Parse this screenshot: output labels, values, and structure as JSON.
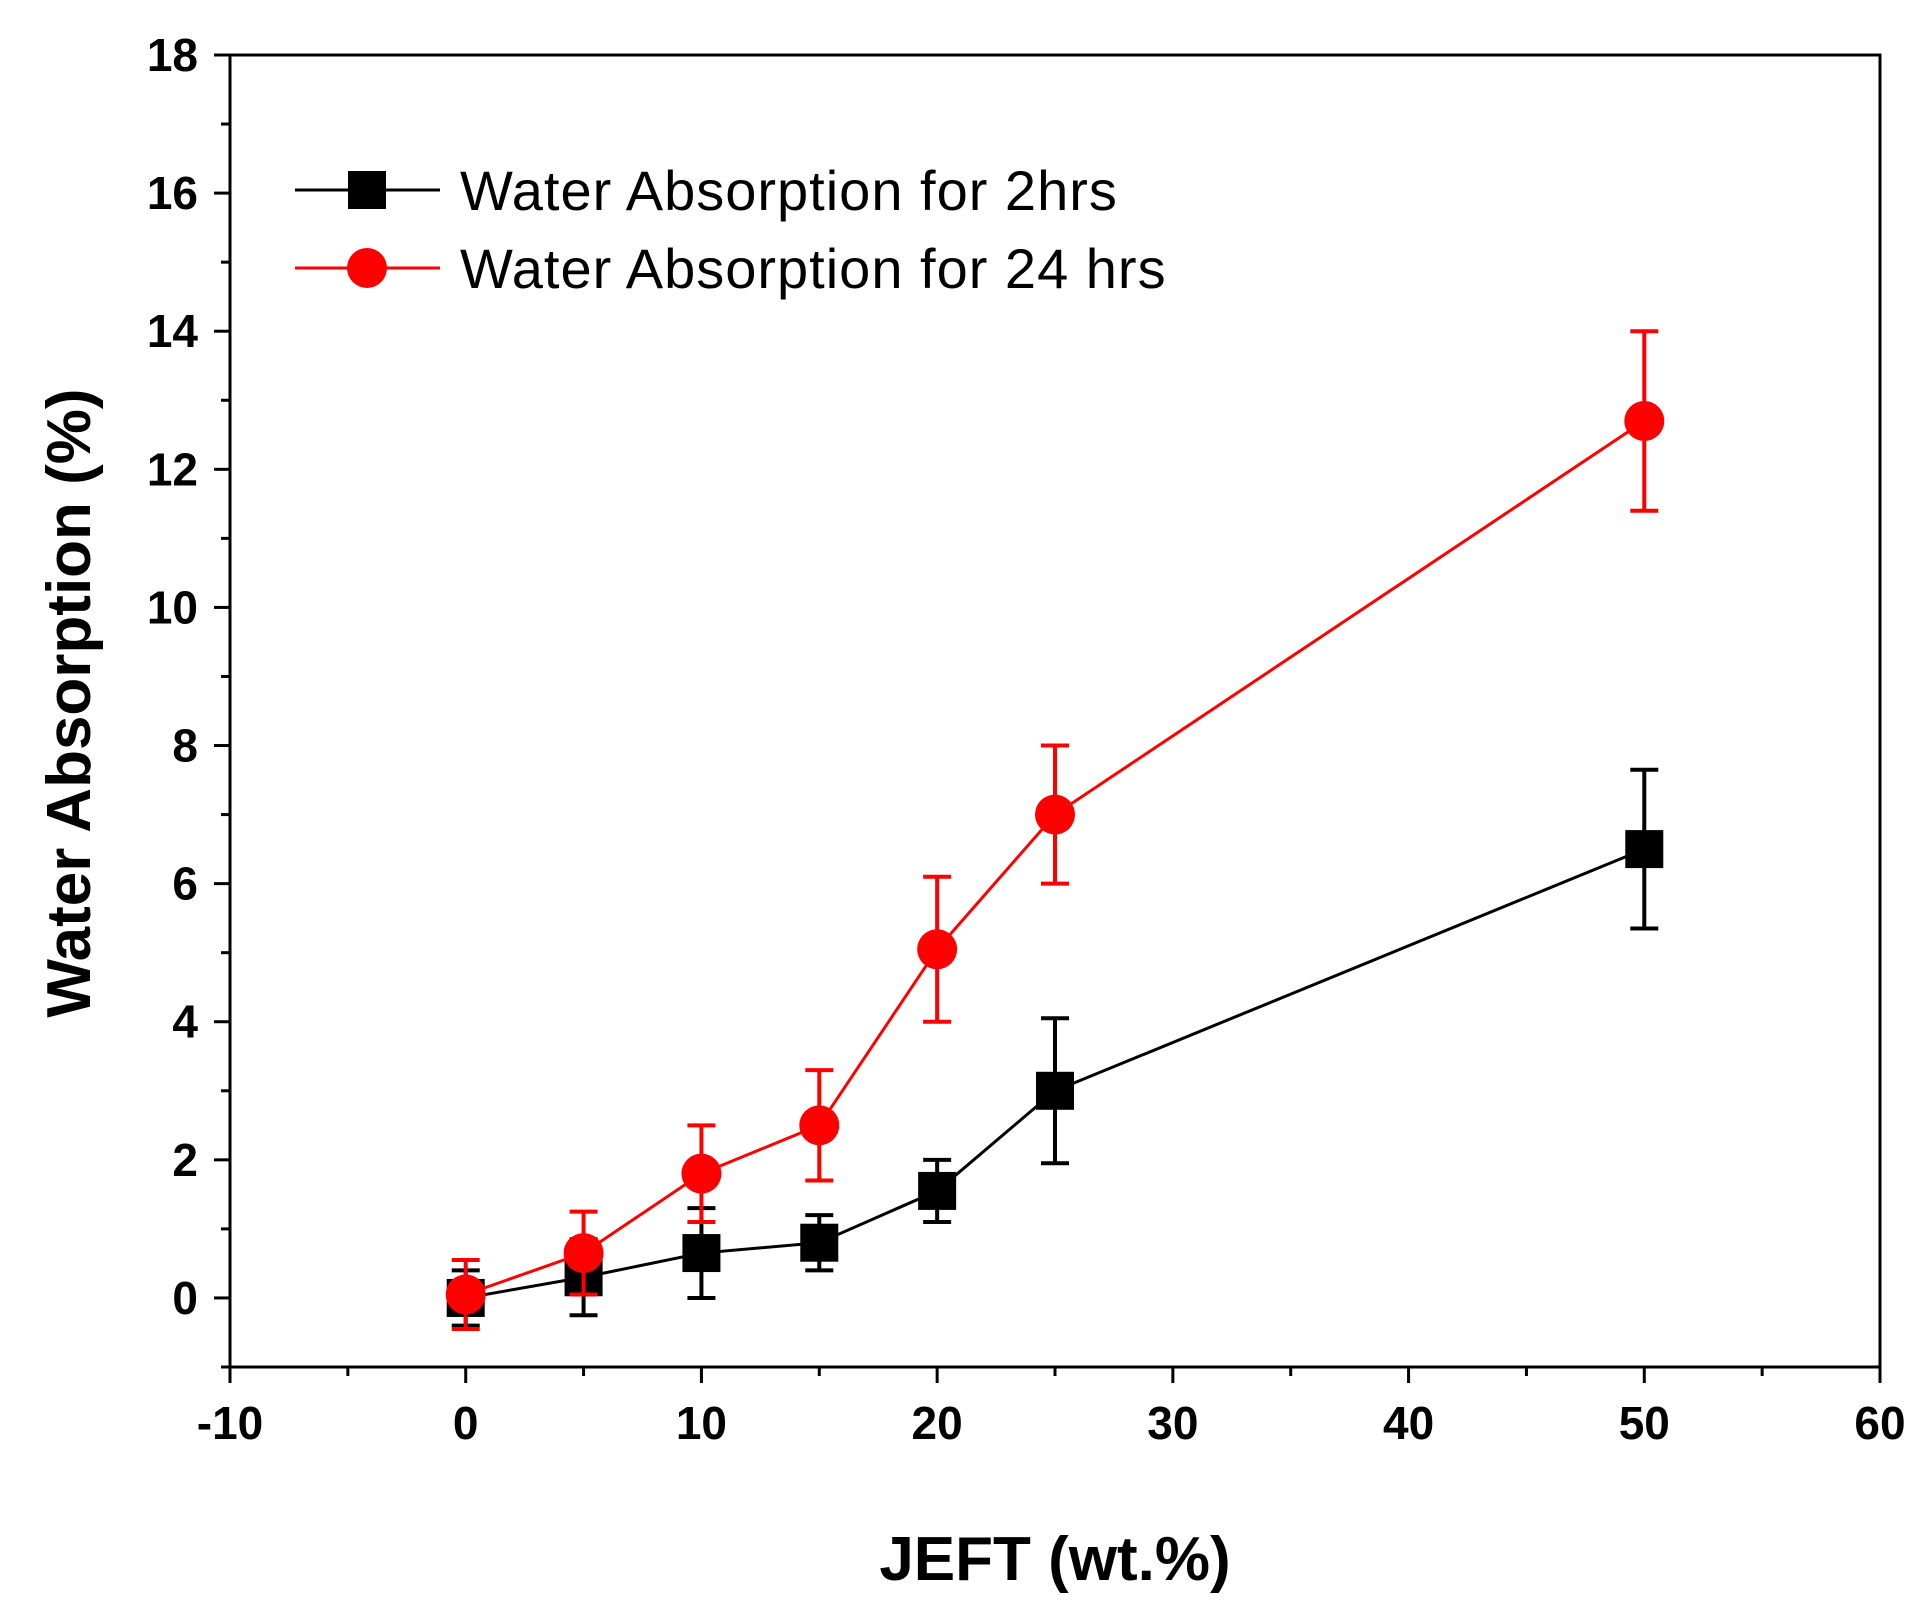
{
  "chart_data": {
    "type": "line",
    "title": "",
    "xlabel": "JEFT (wt.%)",
    "ylabel": "Water Absorption (%)",
    "xlim": [
      -10,
      60
    ],
    "ylim": [
      -1,
      18
    ],
    "xticks": [
      -10,
      0,
      10,
      20,
      30,
      40,
      50,
      60
    ],
    "yticks": [
      0,
      2,
      4,
      6,
      8,
      10,
      12,
      14,
      16,
      18
    ],
    "grid": false,
    "legend_position": "top-left",
    "series": [
      {
        "name": "Water Absorption for 2hrs",
        "color": "#000000",
        "marker": "square",
        "x": [
          0,
          5,
          10,
          15,
          20,
          25,
          50
        ],
        "y": [
          0.0,
          0.3,
          0.65,
          0.8,
          1.55,
          3.0,
          6.5
        ],
        "err": [
          0.4,
          0.55,
          0.65,
          0.4,
          0.45,
          1.05,
          1.15
        ]
      },
      {
        "name": "Water Absorption for 24 hrs",
        "color": "#ff0000",
        "marker": "circle",
        "x": [
          0,
          5,
          10,
          15,
          20,
          25,
          50
        ],
        "y": [
          0.05,
          0.65,
          1.8,
          2.5,
          5.05,
          7.0,
          12.7
        ],
        "err": [
          0.5,
          0.6,
          0.7,
          0.8,
          1.05,
          1.0,
          1.3
        ]
      }
    ]
  }
}
